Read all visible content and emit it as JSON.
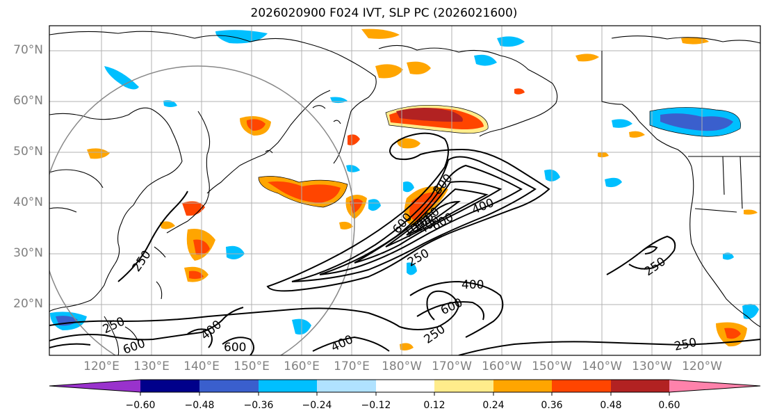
{
  "title": "2026020900 F024 IVT, SLP PC (2026021600)",
  "map": {
    "lat_labels": [
      "70°N",
      "60°N",
      "50°N",
      "40°N",
      "30°N",
      "20°N"
    ],
    "lon_labels": [
      "120°E",
      "130°E",
      "140°E",
      "150°E",
      "160°E",
      "170°E",
      "180°W",
      "170°W",
      "160°W",
      "150°W",
      "140°W",
      "130°W",
      "120°W"
    ],
    "contour_labels": [
      "250",
      "250",
      "250",
      "250",
      "250",
      "400",
      "400",
      "400",
      "400",
      "600",
      "600",
      "600",
      "600",
      "600",
      "800",
      "1000",
      "400",
      "1000",
      "250"
    ],
    "ivt_contour_levels": [
      250,
      400,
      600,
      800,
      1000
    ]
  },
  "colorbar": {
    "ticks": [
      "−0.60",
      "−0.48",
      "−0.36",
      "−0.24",
      "−0.12",
      "0.12",
      "0.24",
      "0.36",
      "0.48",
      "0.60"
    ],
    "colors": [
      "#9932cc",
      "#00008b",
      "#3a5fcd",
      "#00bfff",
      "#b0e2ff",
      "#ffffff",
      "#ffec8b",
      "#ffa500",
      "#ff4500",
      "#b22222",
      "#ff82ab"
    ],
    "extend": "both"
  }
}
